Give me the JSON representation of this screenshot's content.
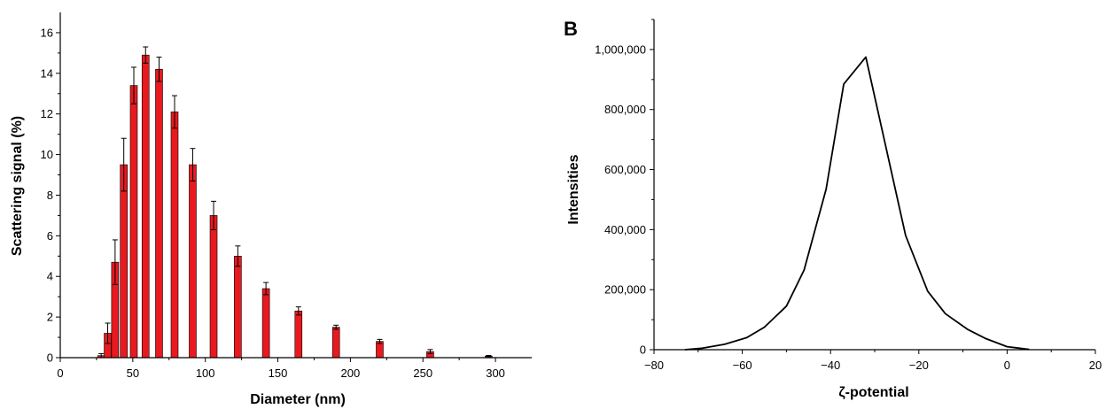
{
  "chart_data": [
    {
      "type": "bar",
      "panel_label": "",
      "xlabel": "Diameter (nm)",
      "ylabel": "Scattering signal (%)",
      "xlim": [
        0,
        325
      ],
      "ylim": [
        0,
        17
      ],
      "xticks": [
        0,
        50,
        100,
        150,
        200,
        250,
        300
      ],
      "yticks": [
        0,
        2,
        4,
        6,
        8,
        10,
        12,
        14,
        16
      ],
      "xtick_labels": [
        "0",
        "50",
        "100",
        "150",
        "200",
        "250",
        "300"
      ],
      "ytick_labels": [
        "0",
        "2",
        "4",
        "6",
        "8",
        "10",
        "12",
        "14",
        "16"
      ],
      "bar_color": "#e8191f",
      "x": [
        28.2,
        32.7,
        37.8,
        43.8,
        50.7,
        58.8,
        68.1,
        78.8,
        91.3,
        105.7,
        122.4,
        141.8,
        164.2,
        190.1,
        220.2,
        255.0,
        295.3
      ],
      "values": [
        0.1,
        1.2,
        4.7,
        9.5,
        13.4,
        14.9,
        14.2,
        12.1,
        9.5,
        7.0,
        5.0,
        3.4,
        2.3,
        1.5,
        0.8,
        0.3,
        0.08
      ],
      "error": [
        0.1,
        0.5,
        1.1,
        1.3,
        0.9,
        0.4,
        0.6,
        0.8,
        0.8,
        0.7,
        0.5,
        0.3,
        0.2,
        0.1,
        0.1,
        0.1,
        0.03
      ]
    },
    {
      "type": "line",
      "panel_label": "B",
      "xlabel": "ζ-potential",
      "ylabel": "Intensities",
      "xlim": [
        -80,
        20
      ],
      "ylim": [
        0,
        1100000
      ],
      "xticks": [
        -80,
        -60,
        -40,
        -20,
        0,
        20
      ],
      "yticks": [
        0,
        200000,
        400000,
        600000,
        800000,
        1000000
      ],
      "xtick_labels": [
        "−80",
        "−60",
        "−40",
        "−20",
        "0",
        "20"
      ],
      "ytick_labels": [
        "0",
        "200,000",
        "400,000",
        "600,000",
        "800,000",
        "1,000,000"
      ],
      "line_color": "#000000",
      "x": [
        -73,
        -69,
        -64,
        -59,
        -55,
        -50,
        -46,
        -41,
        -37,
        -32,
        -28,
        -23,
        -18,
        -14,
        -9,
        -5,
        0,
        5
      ],
      "y": [
        0,
        5000,
        18000,
        40000,
        75000,
        145000,
        265000,
        535000,
        885000,
        975000,
        710000,
        380000,
        195000,
        120000,
        68000,
        38000,
        10000,
        1000
      ]
    }
  ]
}
